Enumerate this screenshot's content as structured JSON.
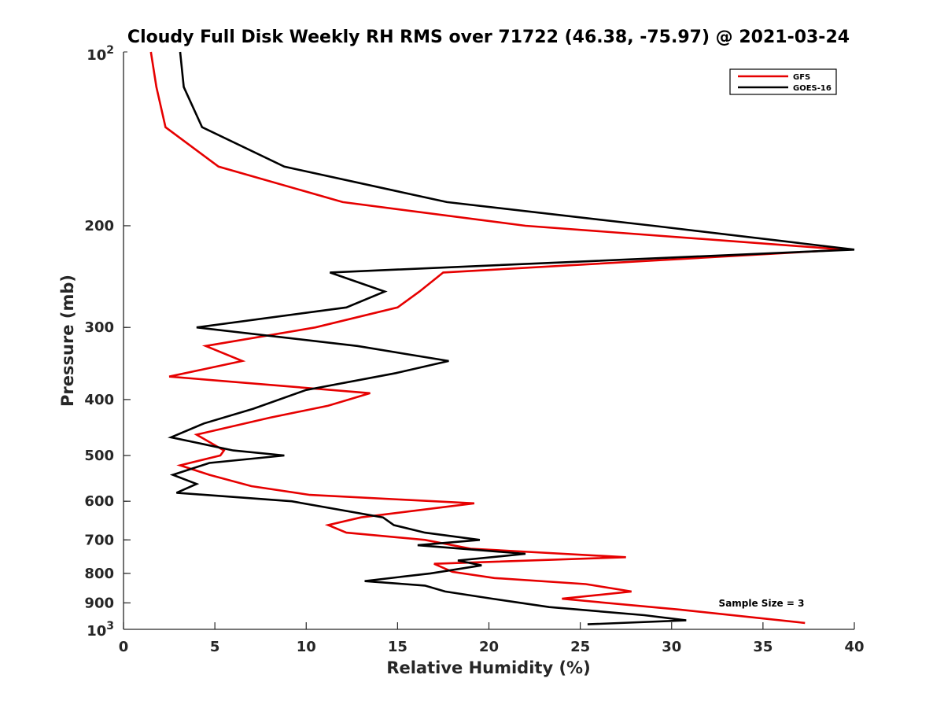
{
  "chart_data": {
    "type": "line",
    "title": "Cloudy Full Disk Weekly RH RMS over 71722 (46.38, -75.97) @ 2021-03-24",
    "xlabel": "Relative Humidity (%)",
    "ylabel": "Pressure (mb)",
    "xlim": [
      0,
      40
    ],
    "ylim": [
      100,
      1000
    ],
    "yscale": "log",
    "yreversed": true,
    "xticks": [
      "0",
      "5",
      "10",
      "15",
      "20",
      "25",
      "30",
      "35",
      "40"
    ],
    "xtick_values": [
      0,
      5,
      10,
      15,
      20,
      25,
      30,
      35,
      40
    ],
    "yticks": [
      {
        "value": 200,
        "label": "200"
      },
      {
        "value": 300,
        "label": "300"
      },
      {
        "value": 400,
        "label": "400"
      },
      {
        "value": 500,
        "label": "500"
      },
      {
        "value": 600,
        "label": "600"
      },
      {
        "value": 700,
        "label": "700"
      },
      {
        "value": 800,
        "label": "800"
      },
      {
        "value": 900,
        "label": "900"
      }
    ],
    "ytick_min": {
      "base": "10",
      "exp": "2"
    },
    "ytick_max": {
      "base": "10",
      "exp": "3"
    },
    "legend_position": "top-right",
    "annotation": "Sample Size = 3",
    "series": [
      {
        "name": "GFS",
        "color": "#e60000",
        "points": [
          [
            1.5,
            100
          ],
          [
            1.8,
            115
          ],
          [
            2.3,
            135
          ],
          [
            5.2,
            158
          ],
          [
            12,
            182
          ],
          [
            22,
            200
          ],
          [
            39.5,
            220
          ],
          [
            17.5,
            241
          ],
          [
            16.2,
            260
          ],
          [
            15,
            277
          ],
          [
            10.5,
            300
          ],
          [
            4.5,
            323
          ],
          [
            6.5,
            343
          ],
          [
            2.5,
            365
          ],
          [
            13.5,
            390
          ],
          [
            11.2,
            410
          ],
          [
            8,
            430
          ],
          [
            4,
            460
          ],
          [
            5.5,
            490
          ],
          [
            5.3,
            500
          ],
          [
            3.1,
            520
          ],
          [
            4.7,
            540
          ],
          [
            7,
            565
          ],
          [
            10.2,
            585
          ],
          [
            19.2,
            605
          ],
          [
            13,
            640
          ],
          [
            11.2,
            660
          ],
          [
            12.2,
            680
          ],
          [
            16.5,
            700
          ],
          [
            19,
            725
          ],
          [
            27.5,
            750
          ],
          [
            17,
            770
          ],
          [
            18,
            795
          ],
          [
            20.3,
            815
          ],
          [
            25.3,
            835
          ],
          [
            27.8,
            860
          ],
          [
            24,
            885
          ],
          [
            30.5,
            925
          ],
          [
            37.3,
            975
          ]
        ]
      },
      {
        "name": "GOES-16",
        "color": "#000000",
        "points": [
          [
            3.1,
            100
          ],
          [
            3.3,
            115
          ],
          [
            4.3,
            135
          ],
          [
            8.8,
            158
          ],
          [
            17.7,
            182
          ],
          [
            29,
            200
          ],
          [
            40,
            220
          ],
          [
            11.3,
            241
          ],
          [
            14.3,
            260
          ],
          [
            12.2,
            277
          ],
          [
            4,
            300
          ],
          [
            12.8,
            323
          ],
          [
            17.8,
            343
          ],
          [
            14.9,
            360
          ],
          [
            10,
            385
          ],
          [
            7.1,
            415
          ],
          [
            4.4,
            440
          ],
          [
            2.6,
            465
          ],
          [
            6,
            490
          ],
          [
            8.8,
            500
          ],
          [
            4.7,
            515
          ],
          [
            2.7,
            540
          ],
          [
            4,
            560
          ],
          [
            2.9,
            580
          ],
          [
            9.2,
            600
          ],
          [
            14.2,
            640
          ],
          [
            14.8,
            660
          ],
          [
            16.5,
            680
          ],
          [
            19.5,
            700
          ],
          [
            16.1,
            715
          ],
          [
            22,
            740
          ],
          [
            18.3,
            760
          ],
          [
            19.6,
            775
          ],
          [
            16.8,
            800
          ],
          [
            13.2,
            825
          ],
          [
            16.5,
            840
          ],
          [
            17.6,
            860
          ],
          [
            20.2,
            885
          ],
          [
            23.3,
            915
          ],
          [
            28.5,
            945
          ],
          [
            30.8,
            965
          ],
          [
            25.4,
            980
          ]
        ]
      }
    ]
  }
}
